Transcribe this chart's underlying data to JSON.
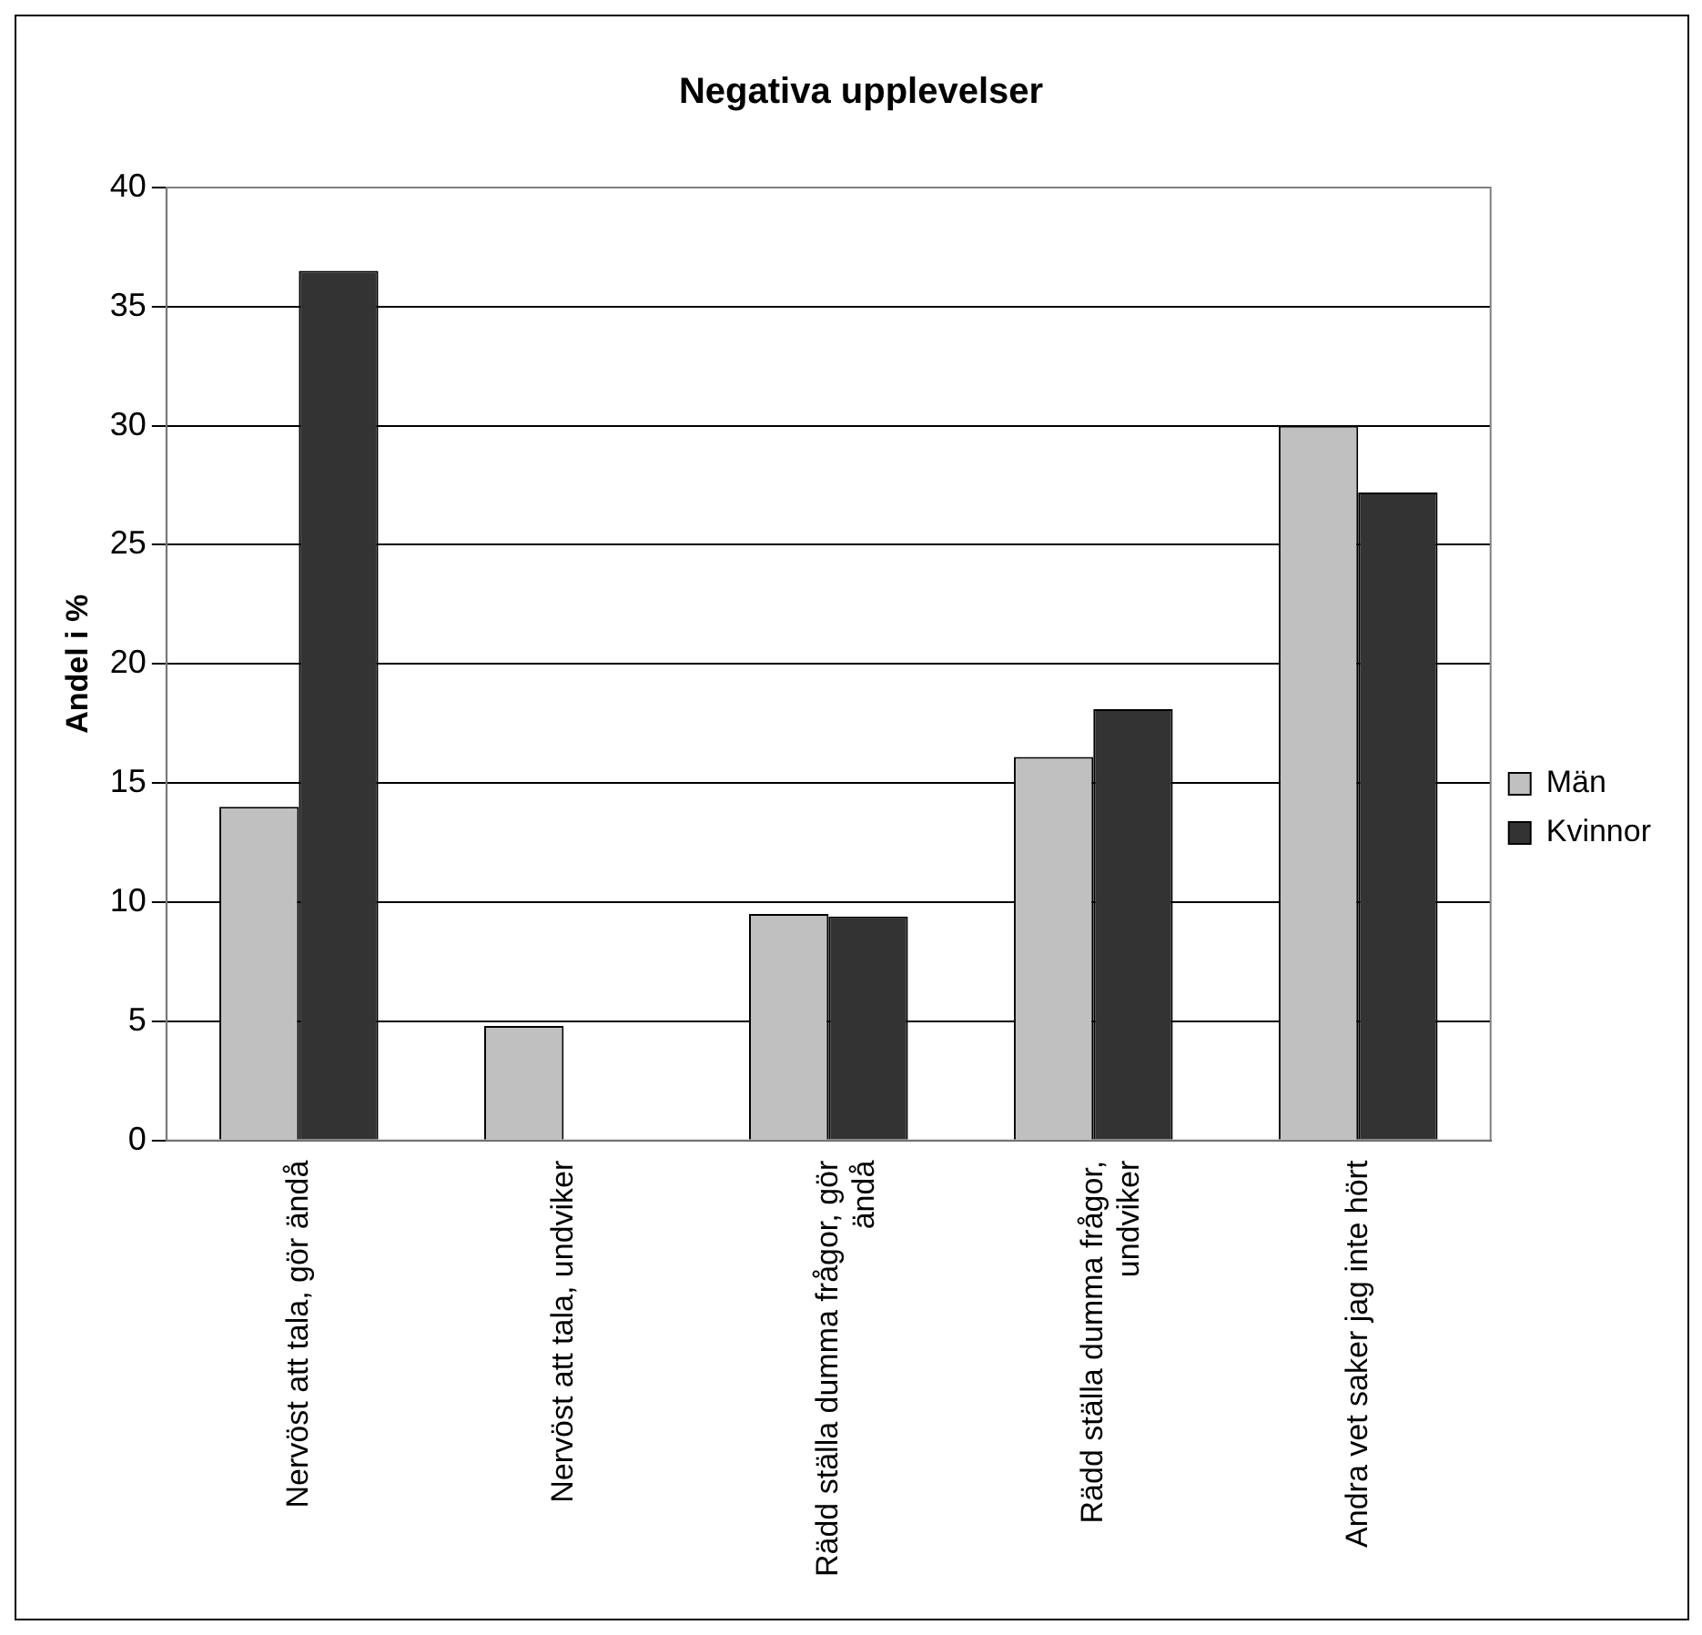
{
  "chart_data": {
    "type": "bar",
    "title": "Negativa upplevelser",
    "ylabel": "Andel i %",
    "categories": [
      "Nervöst att tala, gör ändå",
      "Nervöst att tala, undviker",
      "Rädd ställa dumma frågor, gör ändå",
      "Rädd ställa dumma frågor, undviker",
      "Andra vet saker jag inte hört"
    ],
    "series": [
      {
        "name": "Män",
        "color": "#c0c0c0",
        "values": [
          14.0,
          4.8,
          9.5,
          16.1,
          30.0
        ]
      },
      {
        "name": "Kvinnor",
        "color": "#333333",
        "values": [
          36.5,
          0,
          9.4,
          18.1,
          27.2
        ]
      }
    ],
    "ylim": [
      0,
      40
    ],
    "yticks": [
      0,
      5,
      10,
      15,
      20,
      25,
      30,
      35,
      40
    ],
    "grid": "y",
    "legend": "right"
  }
}
